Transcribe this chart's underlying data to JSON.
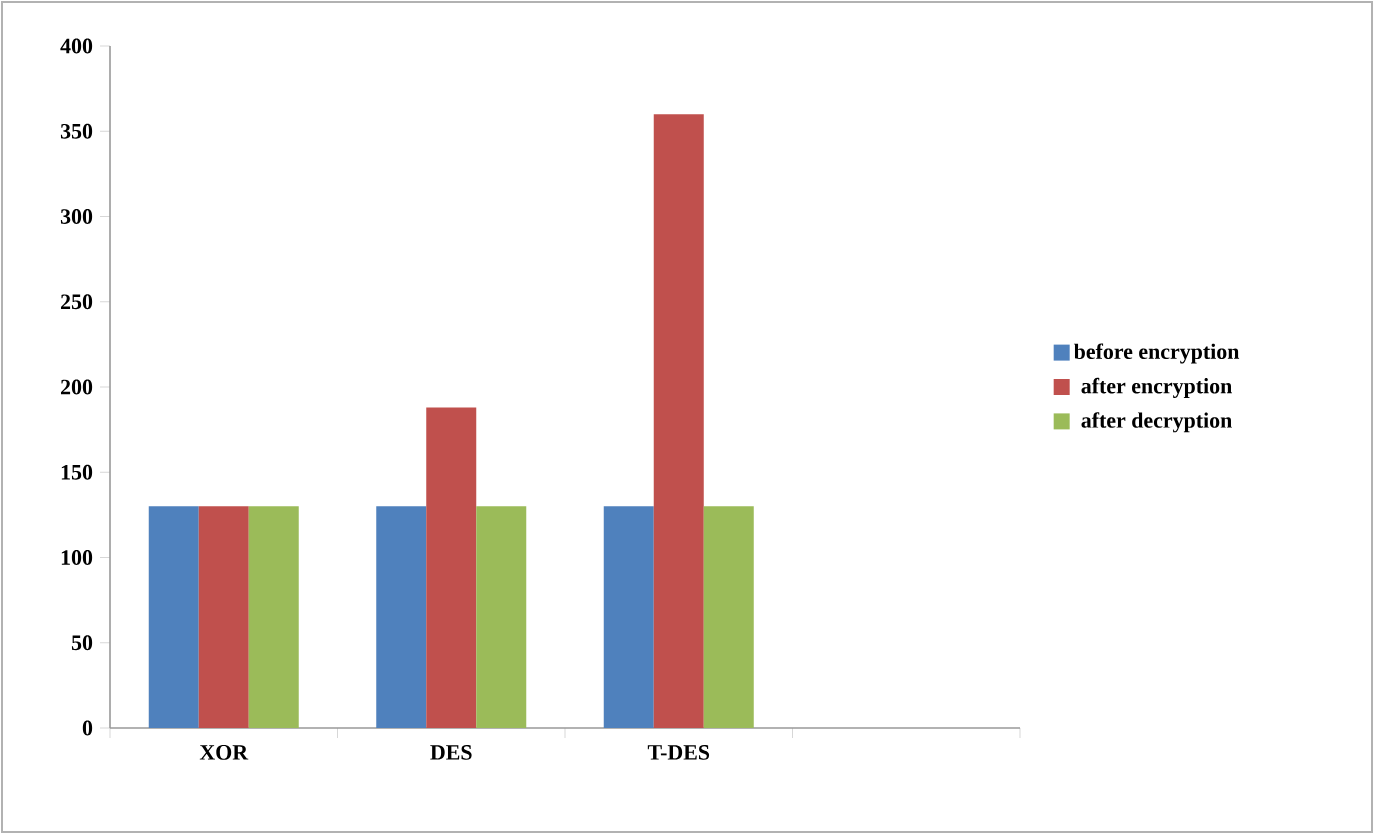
{
  "chart_data": {
    "type": "bar",
    "categories": [
      "XOR",
      "DES",
      "T-DES",
      null
    ],
    "series": [
      {
        "name": "before encryption",
        "color": "#4f81bd",
        "values": [
          130,
          130,
          130,
          null
        ]
      },
      {
        "name": "after encryption",
        "color": "#c0504d",
        "values": [
          130,
          188,
          360,
          null
        ]
      },
      {
        "name": "after decryption",
        "color": "#9bbb59",
        "values": [
          130,
          130,
          130,
          null
        ]
      }
    ],
    "ylim": [
      0,
      400
    ],
    "yticks": [
      0,
      50,
      100,
      150,
      200,
      250,
      300,
      350,
      400
    ],
    "legend": "right",
    "grid": false
  }
}
